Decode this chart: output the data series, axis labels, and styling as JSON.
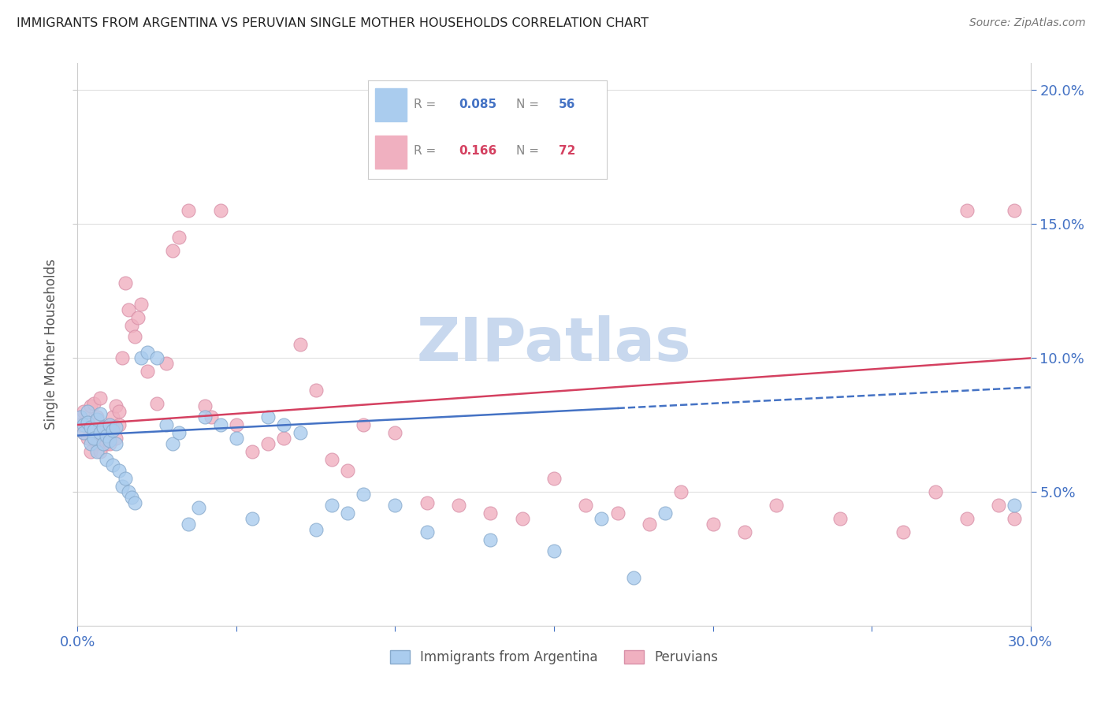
{
  "title": "IMMIGRANTS FROM ARGENTINA VS PERUVIAN SINGLE MOTHER HOUSEHOLDS CORRELATION CHART",
  "source": "Source: ZipAtlas.com",
  "ylabel": "Single Mother Households",
  "xlim": [
    0.0,
    0.3
  ],
  "ylim": [
    0.0,
    0.21
  ],
  "yticks": [
    0.05,
    0.1,
    0.15,
    0.2
  ],
  "ytick_labels": [
    "5.0%",
    "10.0%",
    "15.0%",
    "20.0%"
  ],
  "xtick_labels_left": "0.0%",
  "xtick_labels_right": "30.0%",
  "watermark": "ZIPatlas",
  "watermark_color": "#c8d8ee",
  "blue_color": "#4472c4",
  "blue_scatter": "#aaccee",
  "pink_color": "#d44060",
  "pink_scatter": "#f0b0c0",
  "grid_color": "#e0e0e0",
  "axis_color": "#cccccc",
  "arg_R": "0.085",
  "arg_N": "56",
  "per_R": "0.166",
  "per_N": "72",
  "arg_line_intercept": 0.071,
  "arg_line_slope": 0.06,
  "per_line_intercept": 0.075,
  "per_line_slope": 0.083,
  "arg_x": [
    0.001,
    0.002,
    0.002,
    0.003,
    0.003,
    0.004,
    0.004,
    0.005,
    0.005,
    0.006,
    0.006,
    0.007,
    0.007,
    0.008,
    0.008,
    0.009,
    0.009,
    0.01,
    0.01,
    0.011,
    0.011,
    0.012,
    0.012,
    0.013,
    0.014,
    0.015,
    0.016,
    0.017,
    0.018,
    0.02,
    0.022,
    0.025,
    0.028,
    0.03,
    0.032,
    0.035,
    0.038,
    0.04,
    0.045,
    0.05,
    0.055,
    0.06,
    0.065,
    0.07,
    0.075,
    0.08,
    0.085,
    0.09,
    0.1,
    0.11,
    0.13,
    0.15,
    0.165,
    0.175,
    0.185,
    0.295
  ],
  "arg_y": [
    0.078,
    0.075,
    0.072,
    0.08,
    0.076,
    0.074,
    0.068,
    0.073,
    0.07,
    0.077,
    0.065,
    0.072,
    0.079,
    0.068,
    0.074,
    0.071,
    0.062,
    0.075,
    0.069,
    0.073,
    0.06,
    0.068,
    0.074,
    0.058,
    0.052,
    0.055,
    0.05,
    0.048,
    0.046,
    0.1,
    0.102,
    0.1,
    0.075,
    0.068,
    0.072,
    0.038,
    0.044,
    0.078,
    0.075,
    0.07,
    0.04,
    0.078,
    0.075,
    0.072,
    0.036,
    0.045,
    0.042,
    0.049,
    0.045,
    0.035,
    0.032,
    0.028,
    0.04,
    0.018,
    0.042,
    0.045
  ],
  "per_x": [
    0.001,
    0.001,
    0.002,
    0.002,
    0.003,
    0.003,
    0.004,
    0.004,
    0.005,
    0.005,
    0.006,
    0.006,
    0.007,
    0.007,
    0.008,
    0.008,
    0.009,
    0.009,
    0.01,
    0.01,
    0.011,
    0.011,
    0.012,
    0.012,
    0.013,
    0.013,
    0.014,
    0.015,
    0.016,
    0.017,
    0.018,
    0.019,
    0.02,
    0.022,
    0.025,
    0.028,
    0.03,
    0.032,
    0.035,
    0.04,
    0.042,
    0.045,
    0.05,
    0.055,
    0.06,
    0.065,
    0.07,
    0.075,
    0.08,
    0.085,
    0.09,
    0.1,
    0.11,
    0.12,
    0.13,
    0.14,
    0.15,
    0.16,
    0.17,
    0.18,
    0.19,
    0.2,
    0.21,
    0.22,
    0.24,
    0.26,
    0.27,
    0.28,
    0.29,
    0.295,
    0.295,
    0.28
  ],
  "per_y": [
    0.078,
    0.075,
    0.08,
    0.072,
    0.076,
    0.07,
    0.082,
    0.065,
    0.083,
    0.072,
    0.078,
    0.068,
    0.085,
    0.065,
    0.07,
    0.073,
    0.072,
    0.068,
    0.075,
    0.068,
    0.078,
    0.074,
    0.082,
    0.07,
    0.08,
    0.075,
    0.1,
    0.128,
    0.118,
    0.112,
    0.108,
    0.115,
    0.12,
    0.095,
    0.083,
    0.098,
    0.14,
    0.145,
    0.155,
    0.082,
    0.078,
    0.155,
    0.075,
    0.065,
    0.068,
    0.07,
    0.105,
    0.088,
    0.062,
    0.058,
    0.075,
    0.072,
    0.046,
    0.045,
    0.042,
    0.04,
    0.055,
    0.045,
    0.042,
    0.038,
    0.05,
    0.038,
    0.035,
    0.045,
    0.04,
    0.035,
    0.05,
    0.04,
    0.045,
    0.155,
    0.04,
    0.155
  ]
}
